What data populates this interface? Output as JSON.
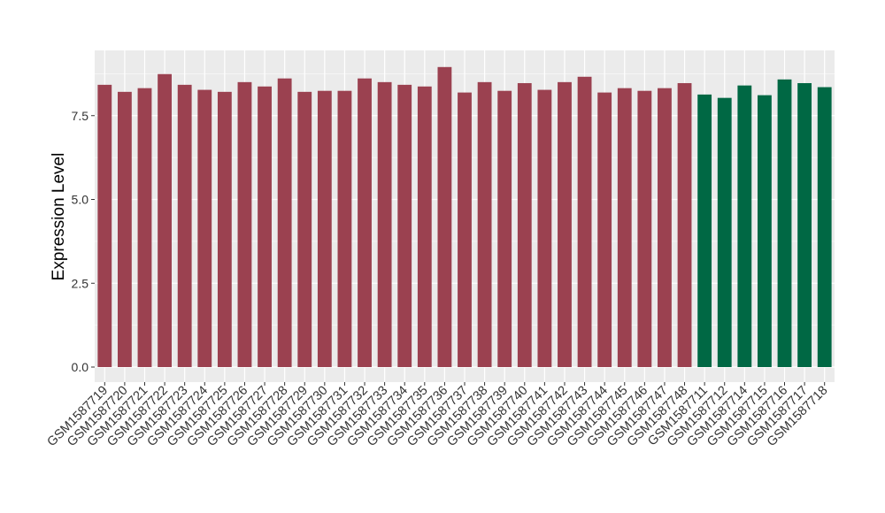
{
  "chart_data": {
    "type": "bar",
    "title": "",
    "xlabel": "",
    "ylabel": "Expression Level",
    "ylim": [
      0,
      9.05
    ],
    "yticks": [
      "0.0",
      "2.5",
      "5.0",
      "7.5"
    ],
    "grid": true,
    "legend": "none",
    "colors": {
      "group1": "#9B4150",
      "group2": "#006844",
      "panel": "#EBEBEB",
      "grid": "#FFFFFF"
    },
    "categories": [
      "GSM1587719",
      "GSM1587720",
      "GSM1587721",
      "GSM1587722",
      "GSM1587723",
      "GSM1587724",
      "GSM1587725",
      "GSM1587726",
      "GSM1587727",
      "GSM1587728",
      "GSM1587729",
      "GSM1587730",
      "GSM1587731",
      "GSM1587732",
      "GSM1587733",
      "GSM1587734",
      "GSM1587735",
      "GSM1587736",
      "GSM1587737",
      "GSM1587738",
      "GSM1587739",
      "GSM1587740",
      "GSM1587741",
      "GSM1587742",
      "GSM1587743",
      "GSM1587744",
      "GSM1587745",
      "GSM1587746",
      "GSM1587747",
      "GSM1587748",
      "GSM1587711",
      "GSM1587712",
      "GSM1587714",
      "GSM1587715",
      "GSM1587716",
      "GSM1587717",
      "GSM1587718"
    ],
    "values": [
      8.42,
      8.21,
      8.32,
      8.74,
      8.42,
      8.27,
      8.21,
      8.5,
      8.37,
      8.61,
      8.21,
      8.24,
      8.24,
      8.61,
      8.5,
      8.42,
      8.37,
      8.95,
      8.19,
      8.5,
      8.24,
      8.47,
      8.27,
      8.5,
      8.66,
      8.19,
      8.32,
      8.24,
      8.32,
      8.47,
      8.13,
      8.03,
      8.4,
      8.11,
      8.58,
      8.47,
      8.35
    ],
    "groups": [
      "group1",
      "group1",
      "group1",
      "group1",
      "group1",
      "group1",
      "group1",
      "group1",
      "group1",
      "group1",
      "group1",
      "group1",
      "group1",
      "group1",
      "group1",
      "group1",
      "group1",
      "group1",
      "group1",
      "group1",
      "group1",
      "group1",
      "group1",
      "group1",
      "group1",
      "group1",
      "group1",
      "group1",
      "group1",
      "group1",
      "group2",
      "group2",
      "group2",
      "group2",
      "group2",
      "group2",
      "group2"
    ]
  }
}
